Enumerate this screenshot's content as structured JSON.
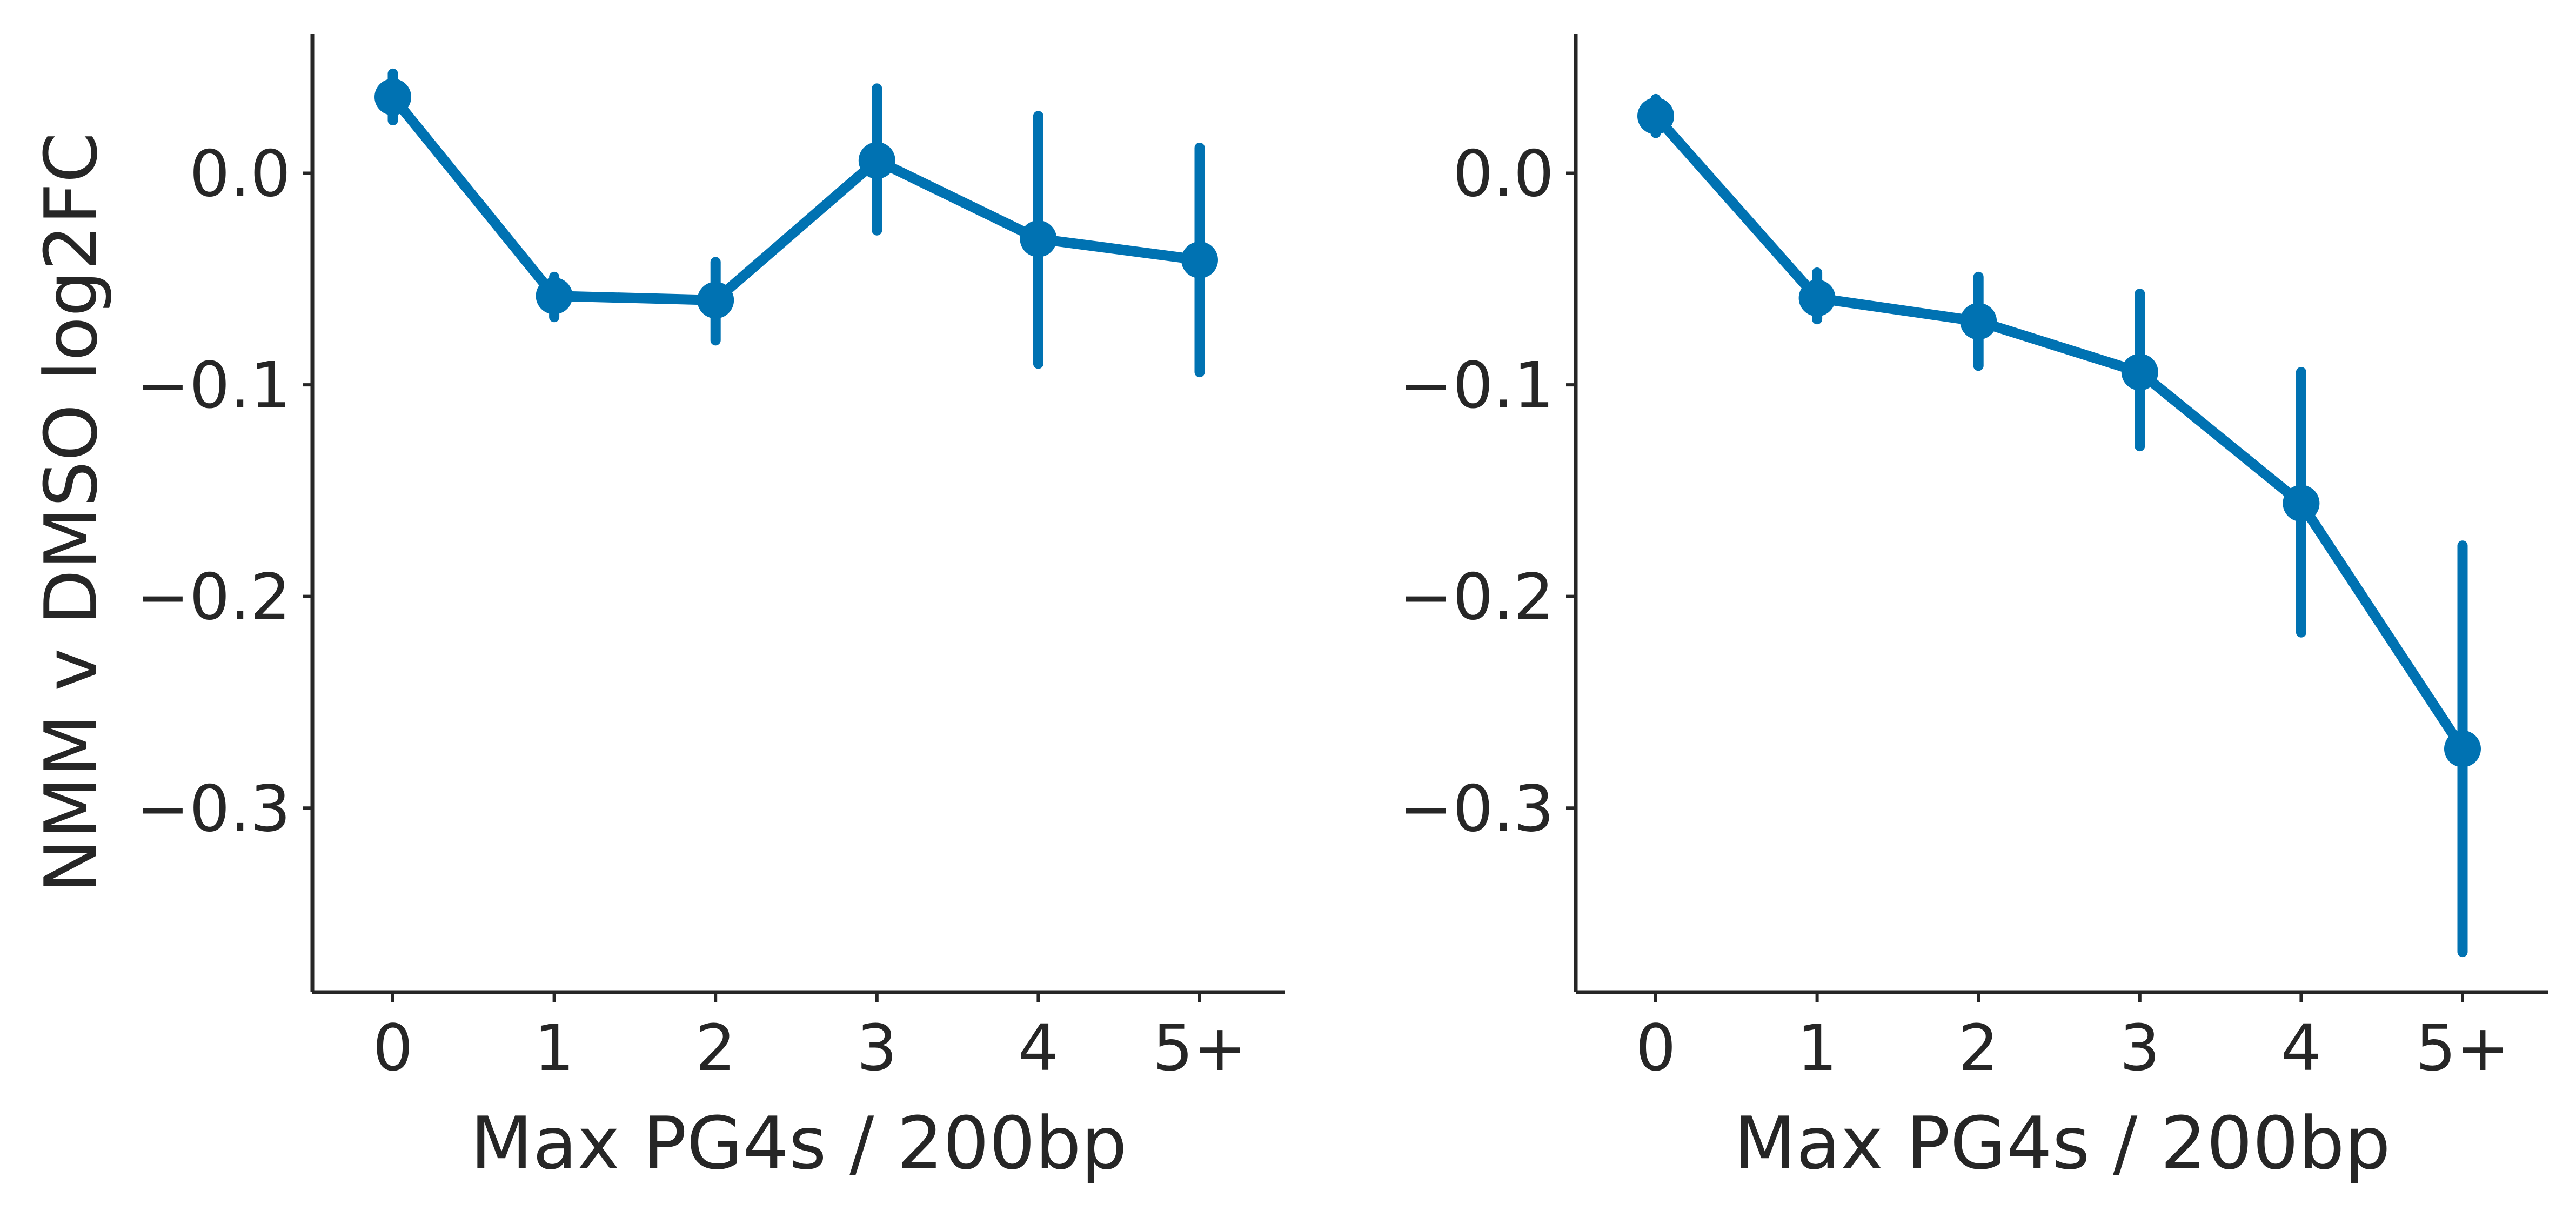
{
  "chart_data": [
    {
      "type": "line",
      "categories": [
        "0",
        "1",
        "2",
        "3",
        "4",
        "5+"
      ],
      "series": [
        {
          "values": [
            0.036,
            -0.058,
            -0.06,
            0.006,
            -0.031,
            -0.041
          ],
          "ci_low": [
            0.025,
            -0.068,
            -0.079,
            -0.027,
            -0.09,
            -0.094
          ],
          "ci_high": [
            0.047,
            -0.049,
            -0.042,
            0.04,
            0.027,
            0.012
          ]
        }
      ],
      "xlabel": "Max PG4s / 200bp",
      "ylabel": "NMM v DMSO log2FC",
      "yticks": [
        0.0,
        -0.1,
        -0.2,
        -0.3
      ],
      "ytick_labels": [
        "0.0",
        "−0.1",
        "−0.2",
        "−0.3"
      ],
      "ylim": [
        -0.387,
        0.066
      ],
      "grid": false,
      "color": "#0072b2"
    },
    {
      "type": "line",
      "categories": [
        "0",
        "1",
        "2",
        "3",
        "4",
        "5+"
      ],
      "series": [
        {
          "values": [
            0.027,
            -0.059,
            -0.07,
            -0.094,
            -0.156,
            -0.272
          ],
          "ci_low": [
            0.019,
            -0.069,
            -0.091,
            -0.129,
            -0.217,
            -0.368
          ],
          "ci_high": [
            0.035,
            -0.047,
            -0.049,
            -0.057,
            -0.094,
            -0.176
          ]
        }
      ],
      "xlabel": "Max PG4s / 200bp",
      "ylabel": "",
      "yticks": [
        0.0,
        -0.1,
        -0.2,
        -0.3
      ],
      "ytick_labels": [
        "0.0",
        "−0.1",
        "−0.2",
        "−0.3"
      ],
      "ylim": [
        -0.387,
        0.066
      ],
      "grid": false,
      "color": "#0072b2"
    }
  ]
}
